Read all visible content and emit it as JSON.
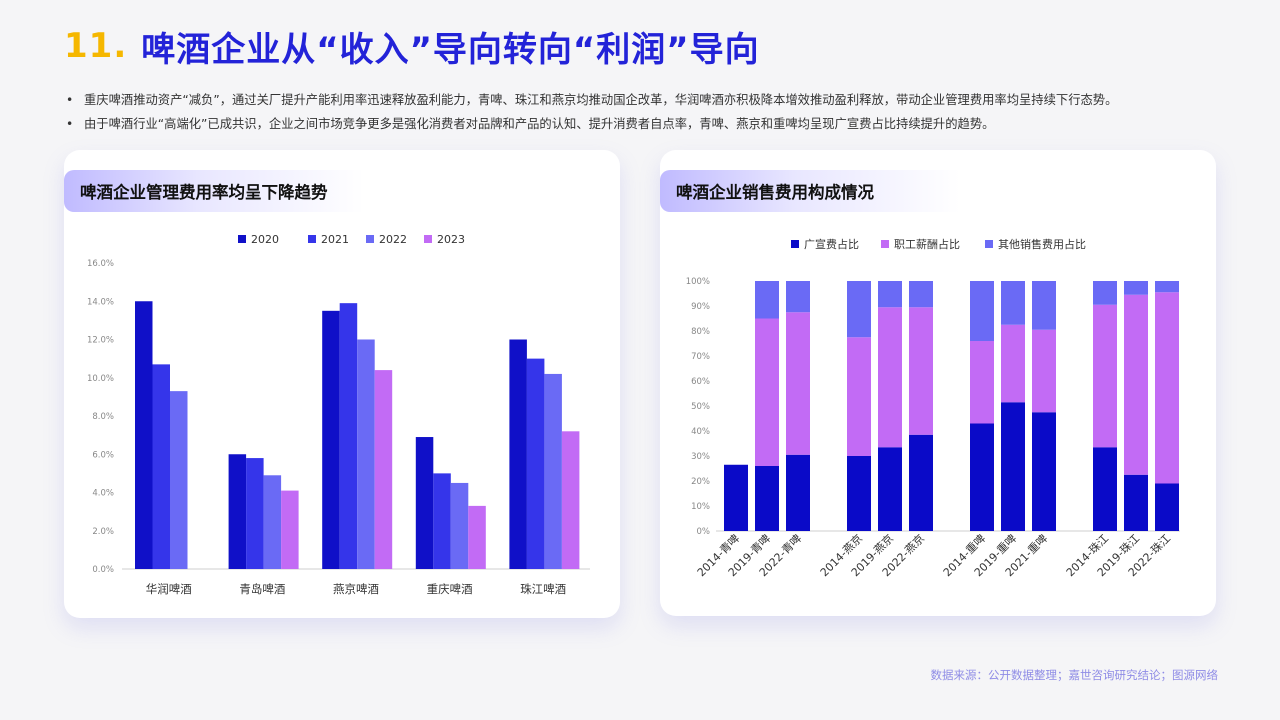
{
  "header": {
    "number": "11.",
    "title": "啤酒企业从“收入”导向转向“利润”导向"
  },
  "bullets": [
    "重庆啤酒推动资产“减负”，通过关厂提升产能利用率迅速释放盈利能力，青啤、珠江和燕京均推动国企改革，华润啤酒亦积极降本增效推动盈利释放，带动企业管理费用率均呈持续下行态势。",
    "由于啤酒行业“高端化”已成共识，企业之间市场竞争更多是强化消费者对品牌和产品的认知、提升消费者自点率，青啤、燕京和重啤均呈现广宣费占比持续提升的趋势。"
  ],
  "cards": [
    {
      "title": "啤酒企业管理费用率均呈下降趋势"
    },
    {
      "title": "啤酒企业销售费用构成情况"
    }
  ],
  "source": "数据来源：公开数据整理；嘉世咨询研究结论；图源网络",
  "chart_data": [
    {
      "type": "bar",
      "title": "啤酒企业管理费用率均呈下降趋势",
      "categories": [
        "华润啤酒",
        "青岛啤酒",
        "燕京啤酒",
        "重庆啤酒",
        "珠江啤酒"
      ],
      "series": [
        {
          "name": "2020",
          "color": "#1010c8",
          "values": [
            14.0,
            6.0,
            13.5,
            6.9,
            12.0
          ]
        },
        {
          "name": "2021",
          "color": "#3535ea",
          "values": [
            10.7,
            5.8,
            13.9,
            5.0,
            11.0
          ]
        },
        {
          "name": "2022",
          "color": "#6a6af5",
          "values": [
            9.3,
            4.9,
            12.0,
            4.5,
            10.2
          ]
        },
        {
          "name": "2023",
          "color": "#c26bf5",
          "values": [
            null,
            4.1,
            10.4,
            3.3,
            7.2
          ]
        }
      ],
      "ylim": [
        0,
        16
      ],
      "yticks": [
        "0.0%",
        "2.0%",
        "4.0%",
        "6.0%",
        "8.0%",
        "10.0%",
        "12.0%",
        "14.0%",
        "16.0%"
      ],
      "legend": "top"
    },
    {
      "type": "bar",
      "stacked": true,
      "title": "啤酒企业销售费用构成情况",
      "groups": [
        [
          "2014-青啤",
          "2019-青啤",
          "2022-青啤"
        ],
        [
          "2014-燕京",
          "2019-燕京",
          "2022-燕京"
        ],
        [
          "2014-重啤",
          "2019-重啤",
          "2021-重啤"
        ],
        [
          "2014-珠江",
          "2019-珠江",
          "2022-珠江"
        ]
      ],
      "series": [
        {
          "name": "广宣费占比",
          "color": "#0a0ac8",
          "values": [
            [
              26.5,
              26.0,
              30.5
            ],
            [
              30.0,
              33.5,
              38.5
            ],
            [
              43.0,
              51.5,
              47.5
            ],
            [
              33.5,
              22.5,
              19.0
            ]
          ]
        },
        {
          "name": "职工薪酬占比",
          "color": "#c26bf5",
          "values": [
            [
              0,
              59.0,
              57.0
            ],
            [
              47.5,
              56.0,
              51.0
            ],
            [
              33.0,
              31.0,
              33.0
            ],
            [
              57.0,
              72.0,
              76.5
            ]
          ]
        },
        {
          "name": "其他销售费用占比",
          "color": "#6a6af5",
          "values": [
            [
              0,
              15.0,
              12.5
            ],
            [
              22.5,
              10.5,
              10.5
            ],
            [
              24.0,
              17.5,
              19.5
            ],
            [
              9.5,
              5.5,
              4.5
            ]
          ]
        }
      ],
      "ylim": [
        0,
        100
      ],
      "yticks": [
        "0%",
        "10%",
        "20%",
        "30%",
        "40%",
        "50%",
        "60%",
        "70%",
        "80%",
        "90%",
        "100%"
      ],
      "legend": "top"
    }
  ]
}
